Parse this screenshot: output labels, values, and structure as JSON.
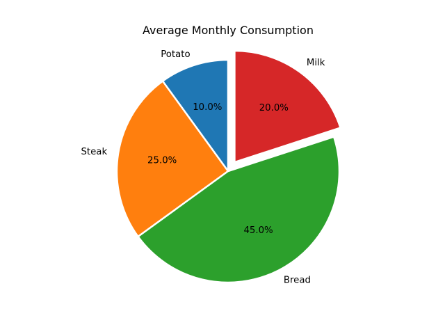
{
  "chart_data": {
    "type": "pie",
    "title": "Average Monthly Consumption",
    "start_angle_deg": 90,
    "direction": "counterclockwise",
    "slices": [
      {
        "label": "Potato",
        "value": 10,
        "percent_label": "10.0%",
        "color": "#1f77b4",
        "explode": 0
      },
      {
        "label": "Steak",
        "value": 25,
        "percent_label": "25.0%",
        "color": "#ff7f0e",
        "explode": 0
      },
      {
        "label": "Bread",
        "value": 45,
        "percent_label": "45.0%",
        "color": "#2ca02c",
        "explode": 0
      },
      {
        "label": "Milk",
        "value": 20,
        "percent_label": "20.0%",
        "color": "#d62728",
        "explode": 0.1
      }
    ]
  }
}
